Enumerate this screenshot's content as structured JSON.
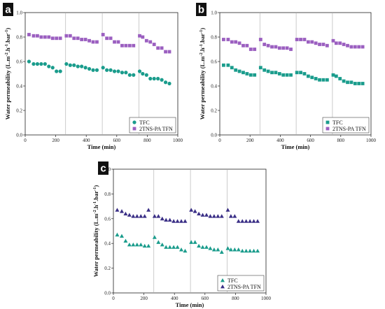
{
  "colors": {
    "tfc": "#1a9c8c",
    "tfn_ab": "#9b5fc0",
    "tfn_c": "#3a2f86",
    "divider": "#aaaaaa",
    "axis": "#222222"
  },
  "chart_data": [
    {
      "panel": "a",
      "type": "scatter",
      "xlabel": "Time (min)",
      "ylabel": "Water permeability (L.m-2.h-1.bar-1)",
      "xlim": [
        0,
        1000
      ],
      "ylim": [
        0.0,
        1.0
      ],
      "xticks": [
        "0",
        "200",
        "400",
        "600",
        "800",
        "1000"
      ],
      "yticks": [
        "0.0",
        "0.2",
        "0.4",
        "0.6",
        "0.8",
        "1.0"
      ],
      "grid": false,
      "legend_position": "bottom-right",
      "cycle_boundaries": [
        265,
        505,
        745
      ],
      "series": [
        {
          "name": "TFC",
          "marker": "circle",
          "color_key": "tfc",
          "x": [
            25,
            55,
            80,
            105,
            130,
            155,
            180,
            205,
            230,
            270,
            295,
            320,
            345,
            370,
            395,
            420,
            445,
            470,
            510,
            535,
            560,
            585,
            610,
            635,
            660,
            685,
            710,
            750,
            770,
            795,
            820,
            845,
            870,
            895,
            920,
            945
          ],
          "y": [
            0.6,
            0.58,
            0.58,
            0.58,
            0.58,
            0.56,
            0.55,
            0.52,
            0.52,
            0.58,
            0.57,
            0.57,
            0.56,
            0.56,
            0.55,
            0.54,
            0.53,
            0.53,
            0.55,
            0.53,
            0.53,
            0.52,
            0.52,
            0.51,
            0.51,
            0.49,
            0.49,
            0.52,
            0.5,
            0.49,
            0.46,
            0.46,
            0.46,
            0.45,
            0.43,
            0.42
          ]
        },
        {
          "name": "2TNS-PA TFN",
          "marker": "square",
          "color_key": "tfn_ab",
          "x": [
            25,
            55,
            80,
            105,
            130,
            155,
            180,
            205,
            230,
            270,
            295,
            320,
            345,
            370,
            395,
            420,
            445,
            470,
            510,
            535,
            560,
            585,
            610,
            635,
            660,
            685,
            710,
            750,
            770,
            795,
            820,
            845,
            870,
            895,
            920,
            945
          ],
          "y": [
            0.82,
            0.81,
            0.81,
            0.8,
            0.8,
            0.8,
            0.79,
            0.79,
            0.79,
            0.81,
            0.81,
            0.79,
            0.79,
            0.78,
            0.78,
            0.77,
            0.76,
            0.76,
            0.82,
            0.79,
            0.79,
            0.76,
            0.76,
            0.73,
            0.73,
            0.73,
            0.73,
            0.81,
            0.8,
            0.77,
            0.76,
            0.74,
            0.71,
            0.71,
            0.68,
            0.68
          ]
        }
      ]
    },
    {
      "panel": "b",
      "type": "scatter",
      "xlabel": "Time (min)",
      "ylabel": "Water permeability (L.m-2.h-1.bar-1)",
      "xlim": [
        0,
        1000
      ],
      "ylim": [
        0.0,
        1.0
      ],
      "xticks": [
        "0",
        "200",
        "400",
        "600",
        "800",
        "1000"
      ],
      "yticks": [
        "0.0",
        "0.2",
        "0.4",
        "0.6",
        "0.8",
        "1.0"
      ],
      "grid": false,
      "legend_position": "bottom-right",
      "cycle_boundaries": [
        265,
        505,
        745
      ],
      "series": [
        {
          "name": "TFC",
          "marker": "square",
          "color_key": "tfc",
          "x": [
            25,
            55,
            80,
            105,
            130,
            155,
            180,
            205,
            230,
            270,
            295,
            320,
            345,
            370,
            395,
            420,
            445,
            470,
            510,
            535,
            560,
            585,
            610,
            635,
            660,
            685,
            710,
            750,
            770,
            795,
            820,
            845,
            870,
            895,
            920,
            945
          ],
          "y": [
            0.57,
            0.57,
            0.55,
            0.53,
            0.52,
            0.51,
            0.5,
            0.49,
            0.49,
            0.55,
            0.53,
            0.52,
            0.51,
            0.51,
            0.5,
            0.49,
            0.49,
            0.49,
            0.51,
            0.51,
            0.5,
            0.48,
            0.47,
            0.46,
            0.45,
            0.45,
            0.45,
            0.49,
            0.48,
            0.46,
            0.44,
            0.43,
            0.43,
            0.42,
            0.42,
            0.42
          ]
        },
        {
          "name": "2TNS-PA TFN",
          "marker": "square",
          "color_key": "tfn_ab",
          "x": [
            25,
            55,
            80,
            105,
            130,
            155,
            180,
            205,
            230,
            270,
            295,
            320,
            345,
            370,
            395,
            420,
            445,
            470,
            510,
            535,
            560,
            585,
            610,
            635,
            660,
            685,
            710,
            750,
            770,
            795,
            820,
            845,
            870,
            895,
            920,
            945
          ],
          "y": [
            0.78,
            0.78,
            0.76,
            0.76,
            0.75,
            0.73,
            0.73,
            0.7,
            0.7,
            0.78,
            0.74,
            0.73,
            0.72,
            0.72,
            0.71,
            0.71,
            0.71,
            0.7,
            0.78,
            0.78,
            0.78,
            0.76,
            0.76,
            0.75,
            0.74,
            0.74,
            0.73,
            0.77,
            0.75,
            0.75,
            0.74,
            0.73,
            0.72,
            0.72,
            0.72,
            0.72
          ]
        }
      ]
    },
    {
      "panel": "c",
      "type": "scatter",
      "xlabel": "Time (min)",
      "ylabel": "Water permeability (L.m-2.h-1.bar-1)",
      "xlim": [
        0,
        1000
      ],
      "ylim": [
        0.0,
        1.0
      ],
      "xticks": [
        "0",
        "200",
        "400",
        "600",
        "800",
        "1000"
      ],
      "yticks": [
        "0.0",
        "0.2",
        "0.4",
        "0.6",
        "0.8",
        "1.0"
      ],
      "grid": false,
      "legend_position": "bottom-right",
      "cycle_boundaries": [
        265,
        505,
        745
      ],
      "series": [
        {
          "name": "TFC",
          "marker": "triangle",
          "color_key": "tfc",
          "x": [
            25,
            55,
            80,
            105,
            130,
            155,
            180,
            205,
            230,
            270,
            295,
            320,
            345,
            370,
            395,
            420,
            445,
            470,
            510,
            535,
            560,
            585,
            610,
            635,
            660,
            685,
            710,
            750,
            770,
            795,
            820,
            845,
            870,
            895,
            920,
            945
          ],
          "y": [
            0.47,
            0.46,
            0.42,
            0.39,
            0.39,
            0.39,
            0.39,
            0.38,
            0.38,
            0.45,
            0.41,
            0.39,
            0.37,
            0.37,
            0.37,
            0.37,
            0.35,
            0.34,
            0.41,
            0.41,
            0.38,
            0.37,
            0.37,
            0.36,
            0.35,
            0.35,
            0.33,
            0.36,
            0.35,
            0.35,
            0.35,
            0.34,
            0.34,
            0.34,
            0.34,
            0.34
          ]
        },
        {
          "name": "2TNS-PA TFN",
          "marker": "triangle",
          "color_key": "tfn_c",
          "x": [
            25,
            55,
            80,
            105,
            130,
            155,
            180,
            205,
            230,
            270,
            295,
            320,
            345,
            370,
            395,
            420,
            445,
            470,
            510,
            535,
            560,
            585,
            610,
            635,
            660,
            685,
            710,
            750,
            770,
            795,
            820,
            845,
            870,
            895,
            920,
            945
          ],
          "y": [
            0.67,
            0.66,
            0.64,
            0.63,
            0.62,
            0.62,
            0.62,
            0.62,
            0.67,
            0.62,
            0.62,
            0.6,
            0.59,
            0.59,
            0.58,
            0.58,
            0.58,
            0.58,
            0.67,
            0.66,
            0.64,
            0.63,
            0.63,
            0.62,
            0.62,
            0.62,
            0.62,
            0.67,
            0.62,
            0.62,
            0.58,
            0.58,
            0.58,
            0.58,
            0.58,
            0.58
          ]
        }
      ]
    }
  ]
}
